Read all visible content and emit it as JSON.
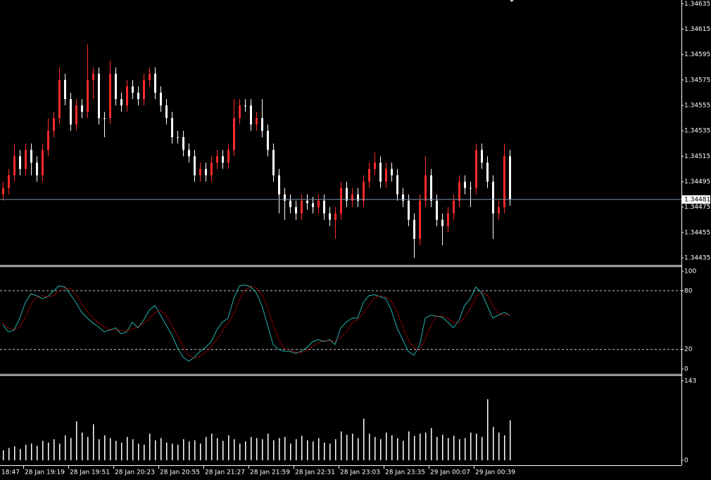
{
  "time_labels": [
    "18:47",
    "28 Jan 19:19",
    "28 Jan 19:51",
    "28 Jan 20:23",
    "28 Jan 20:55",
    "28 Jan 21:27",
    "28 Jan 21:59",
    "28 Jan 22:31",
    "28 Jan 23:03",
    "28 Jan 23:35",
    "29 Jan 00:07",
    "29 Jan 00:39"
  ],
  "chart_data": [
    {
      "type": "ohlc",
      "up_color": "#ff2a2a",
      "down_color": "#ffffff",
      "current_price": 1.34481,
      "current_color": "#7f94a8",
      "ylim": [
        1.3443,
        1.34638
      ],
      "yticks": [
        1.34635,
        1.34615,
        1.34595,
        1.34575,
        1.34555,
        1.34535,
        1.34515,
        1.34495,
        1.34475,
        1.34455,
        1.34435
      ],
      "open": [
        1.34485,
        1.3449,
        1.345,
        1.34515,
        1.34505,
        1.3452,
        1.3451,
        1.345,
        1.3452,
        1.34535,
        1.34545,
        1.34575,
        1.3456,
        1.3454,
        1.34555,
        1.3455,
        1.34575,
        1.3458,
        1.34545,
        1.34545,
        1.3458,
        1.3456,
        1.34555,
        1.3457,
        1.34565,
        1.3456,
        1.34575,
        1.3458,
        1.34565,
        1.34555,
        1.34545,
        1.3453,
        1.3453,
        1.3452,
        1.34515,
        1.345,
        1.34505,
        1.345,
        1.3451,
        1.34515,
        1.3451,
        1.3452,
        1.34545,
        1.34555,
        1.34555,
        1.3454,
        1.34545,
        1.34535,
        1.3452,
        1.345,
        1.34485,
        1.3448,
        1.34475,
        1.3447,
        1.3448,
        1.34478,
        1.34475,
        1.3448,
        1.3447,
        1.34465,
        1.3447,
        1.3449,
        1.3448,
        1.34485,
        1.3448,
        1.34495,
        1.34505,
        1.3451,
        1.34495,
        1.34505,
        1.345,
        1.34485,
        1.3448,
        1.34465,
        1.3445,
        1.3448,
        1.345,
        1.3448,
        1.34465,
        1.3446,
        1.3447,
        1.3448,
        1.34495,
        1.3449,
        1.3449,
        1.3452,
        1.3451,
        1.34495,
        1.3447,
        1.34475,
        1.34515
      ],
      "high": [
        1.34495,
        1.34505,
        1.34525,
        1.3452,
        1.34525,
        1.34525,
        1.34515,
        1.34525,
        1.34545,
        1.3455,
        1.34585,
        1.3458,
        1.34565,
        1.3456,
        1.3456,
        1.34603,
        1.34585,
        1.34585,
        1.3455,
        1.3459,
        1.34585,
        1.34565,
        1.34575,
        1.34575,
        1.3457,
        1.3458,
        1.34585,
        1.34585,
        1.3457,
        1.3456,
        1.3455,
        1.34535,
        1.34535,
        1.34525,
        1.3452,
        1.3451,
        1.3451,
        1.34515,
        1.3452,
        1.3452,
        1.34525,
        1.3456,
        1.3456,
        1.3456,
        1.3456,
        1.3455,
        1.3456,
        1.3454,
        1.34525,
        1.34505,
        1.3449,
        1.34485,
        1.3448,
        1.34485,
        1.34485,
        1.34483,
        1.34485,
        1.34485,
        1.34475,
        1.34475,
        1.34495,
        1.34495,
        1.3449,
        1.3449,
        1.345,
        1.3451,
        1.34518,
        1.34515,
        1.3451,
        1.3451,
        1.34505,
        1.3449,
        1.34485,
        1.3447,
        1.34485,
        1.34515,
        1.34505,
        1.34485,
        1.3447,
        1.34475,
        1.34485,
        1.345,
        1.345,
        1.34495,
        1.34525,
        1.34525,
        1.34515,
        1.345,
        1.3448,
        1.34525,
        1.3452
      ],
      "low": [
        1.3448,
        1.34485,
        1.34495,
        1.345,
        1.345,
        1.345,
        1.34495,
        1.34495,
        1.34515,
        1.3453,
        1.3454,
        1.34555,
        1.34535,
        1.34535,
        1.34545,
        1.34545,
        1.3456,
        1.3454,
        1.3453,
        1.3454,
        1.34555,
        1.3455,
        1.3455,
        1.3456,
        1.34555,
        1.34555,
        1.3457,
        1.3456,
        1.3455,
        1.3454,
        1.34525,
        1.34525,
        1.34515,
        1.3451,
        1.34495,
        1.34495,
        1.34495,
        1.34495,
        1.34505,
        1.34505,
        1.34505,
        1.34515,
        1.3454,
        1.3455,
        1.34535,
        1.34535,
        1.3453,
        1.34515,
        1.34495,
        1.3447,
        1.34465,
        1.3447,
        1.34465,
        1.34465,
        1.34473,
        1.3447,
        1.3447,
        1.34465,
        1.3446,
        1.3445,
        1.34465,
        1.34475,
        1.34475,
        1.34475,
        1.34475,
        1.3449,
        1.345,
        1.3449,
        1.3449,
        1.34495,
        1.3448,
        1.34475,
        1.3446,
        1.34435,
        1.34445,
        1.34475,
        1.34475,
        1.3446,
        1.34445,
        1.34455,
        1.34465,
        1.34475,
        1.34485,
        1.34475,
        1.34485,
        1.34505,
        1.3449,
        1.3445,
        1.34465,
        1.3447,
        1.34476
      ],
      "close": [
        1.3449,
        1.345,
        1.34515,
        1.34505,
        1.3452,
        1.3451,
        1.345,
        1.3452,
        1.34535,
        1.34545,
        1.34575,
        1.3456,
        1.3454,
        1.34555,
        1.3455,
        1.34575,
        1.3458,
        1.34545,
        1.34545,
        1.3458,
        1.3456,
        1.34555,
        1.3457,
        1.34565,
        1.3456,
        1.34575,
        1.3458,
        1.34565,
        1.34555,
        1.34545,
        1.3453,
        1.3453,
        1.3452,
        1.34515,
        1.345,
        1.34505,
        1.345,
        1.3451,
        1.34515,
        1.3451,
        1.3452,
        1.34545,
        1.34555,
        1.34555,
        1.3454,
        1.34545,
        1.34535,
        1.3452,
        1.345,
        1.34485,
        1.3448,
        1.34475,
        1.3447,
        1.3448,
        1.34478,
        1.34475,
        1.3448,
        1.3447,
        1.34465,
        1.3447,
        1.3449,
        1.3448,
        1.34485,
        1.3448,
        1.34495,
        1.34505,
        1.3451,
        1.34495,
        1.34505,
        1.345,
        1.34485,
        1.3448,
        1.34465,
        1.3445,
        1.3448,
        1.345,
        1.3448,
        1.34465,
        1.3446,
        1.3447,
        1.3448,
        1.34495,
        1.3449,
        1.3449,
        1.3452,
        1.3451,
        1.34495,
        1.3447,
        1.34475,
        1.34515,
        1.34481
      ]
    },
    {
      "type": "line",
      "ylim": [
        -5,
        104.3
      ],
      "yticks": [
        100,
        80,
        20,
        0
      ],
      "levels": [
        80,
        20
      ],
      "level_color": "#c8c8c8",
      "series": [
        {
          "color": "#20b2aa",
          "values": [
            45,
            38,
            40,
            52,
            68,
            77,
            75,
            72,
            74,
            80,
            85,
            84,
            76,
            68,
            58,
            52,
            47,
            43,
            38,
            40,
            42,
            36,
            38,
            48,
            42,
            50,
            60,
            65,
            55,
            45,
            35,
            22,
            12,
            8,
            12,
            18,
            22,
            28,
            40,
            48,
            52,
            72,
            85,
            86,
            84,
            78,
            65,
            45,
            25,
            20,
            18,
            18,
            16,
            18,
            22,
            28,
            30,
            28,
            30,
            25,
            42,
            48,
            52,
            52,
            68,
            75,
            76,
            74,
            72,
            60,
            42,
            30,
            18,
            14,
            24,
            52,
            55,
            54,
            53,
            48,
            42,
            50,
            65,
            72,
            84,
            78,
            65,
            52,
            55,
            58,
            55
          ]
        },
        {
          "color": "#ff0000",
          "dashed": true,
          "values": [
            47,
            42,
            40,
            43,
            53,
            66,
            73,
            75,
            74,
            75,
            80,
            83,
            82,
            76,
            67,
            59,
            52,
            47,
            43,
            40,
            40,
            39,
            39,
            41,
            43,
            47,
            51,
            58,
            60,
            55,
            45,
            34,
            23,
            14,
            11,
            13,
            17,
            23,
            30,
            39,
            47,
            57,
            70,
            81,
            85,
            83,
            76,
            63,
            45,
            30,
            21,
            19,
            17,
            17,
            19,
            23,
            27,
            29,
            29,
            28,
            32,
            38,
            47,
            51,
            57,
            65,
            73,
            75,
            74,
            69,
            58,
            44,
            30,
            21,
            19,
            30,
            44,
            54,
            54,
            52,
            48,
            47,
            52,
            62,
            74,
            78,
            76,
            65,
            57,
            55,
            56
          ]
        }
      ]
    },
    {
      "type": "bar",
      "color": "#ffffff",
      "ylim": [
        -9,
        152
      ],
      "yticks": [
        143,
        0
      ],
      "values": [
        18,
        22,
        25,
        20,
        28,
        30,
        26,
        35,
        32,
        38,
        30,
        45,
        40,
        70,
        50,
        42,
        65,
        38,
        45,
        40,
        35,
        32,
        42,
        38,
        30,
        28,
        48,
        36,
        40,
        32,
        30,
        28,
        38,
        34,
        36,
        30,
        42,
        48,
        40,
        35,
        45,
        38,
        30,
        34,
        42,
        40,
        38,
        48,
        36,
        40,
        42,
        30,
        38,
        44,
        36,
        34,
        40,
        32,
        30,
        38,
        52,
        46,
        48,
        40,
        75,
        48,
        42,
        38,
        50,
        45,
        40,
        35,
        52,
        44,
        48,
        50,
        58,
        42,
        46,
        40,
        44,
        38,
        40,
        50,
        48,
        42,
        110,
        60,
        50,
        45,
        72
      ]
    }
  ]
}
